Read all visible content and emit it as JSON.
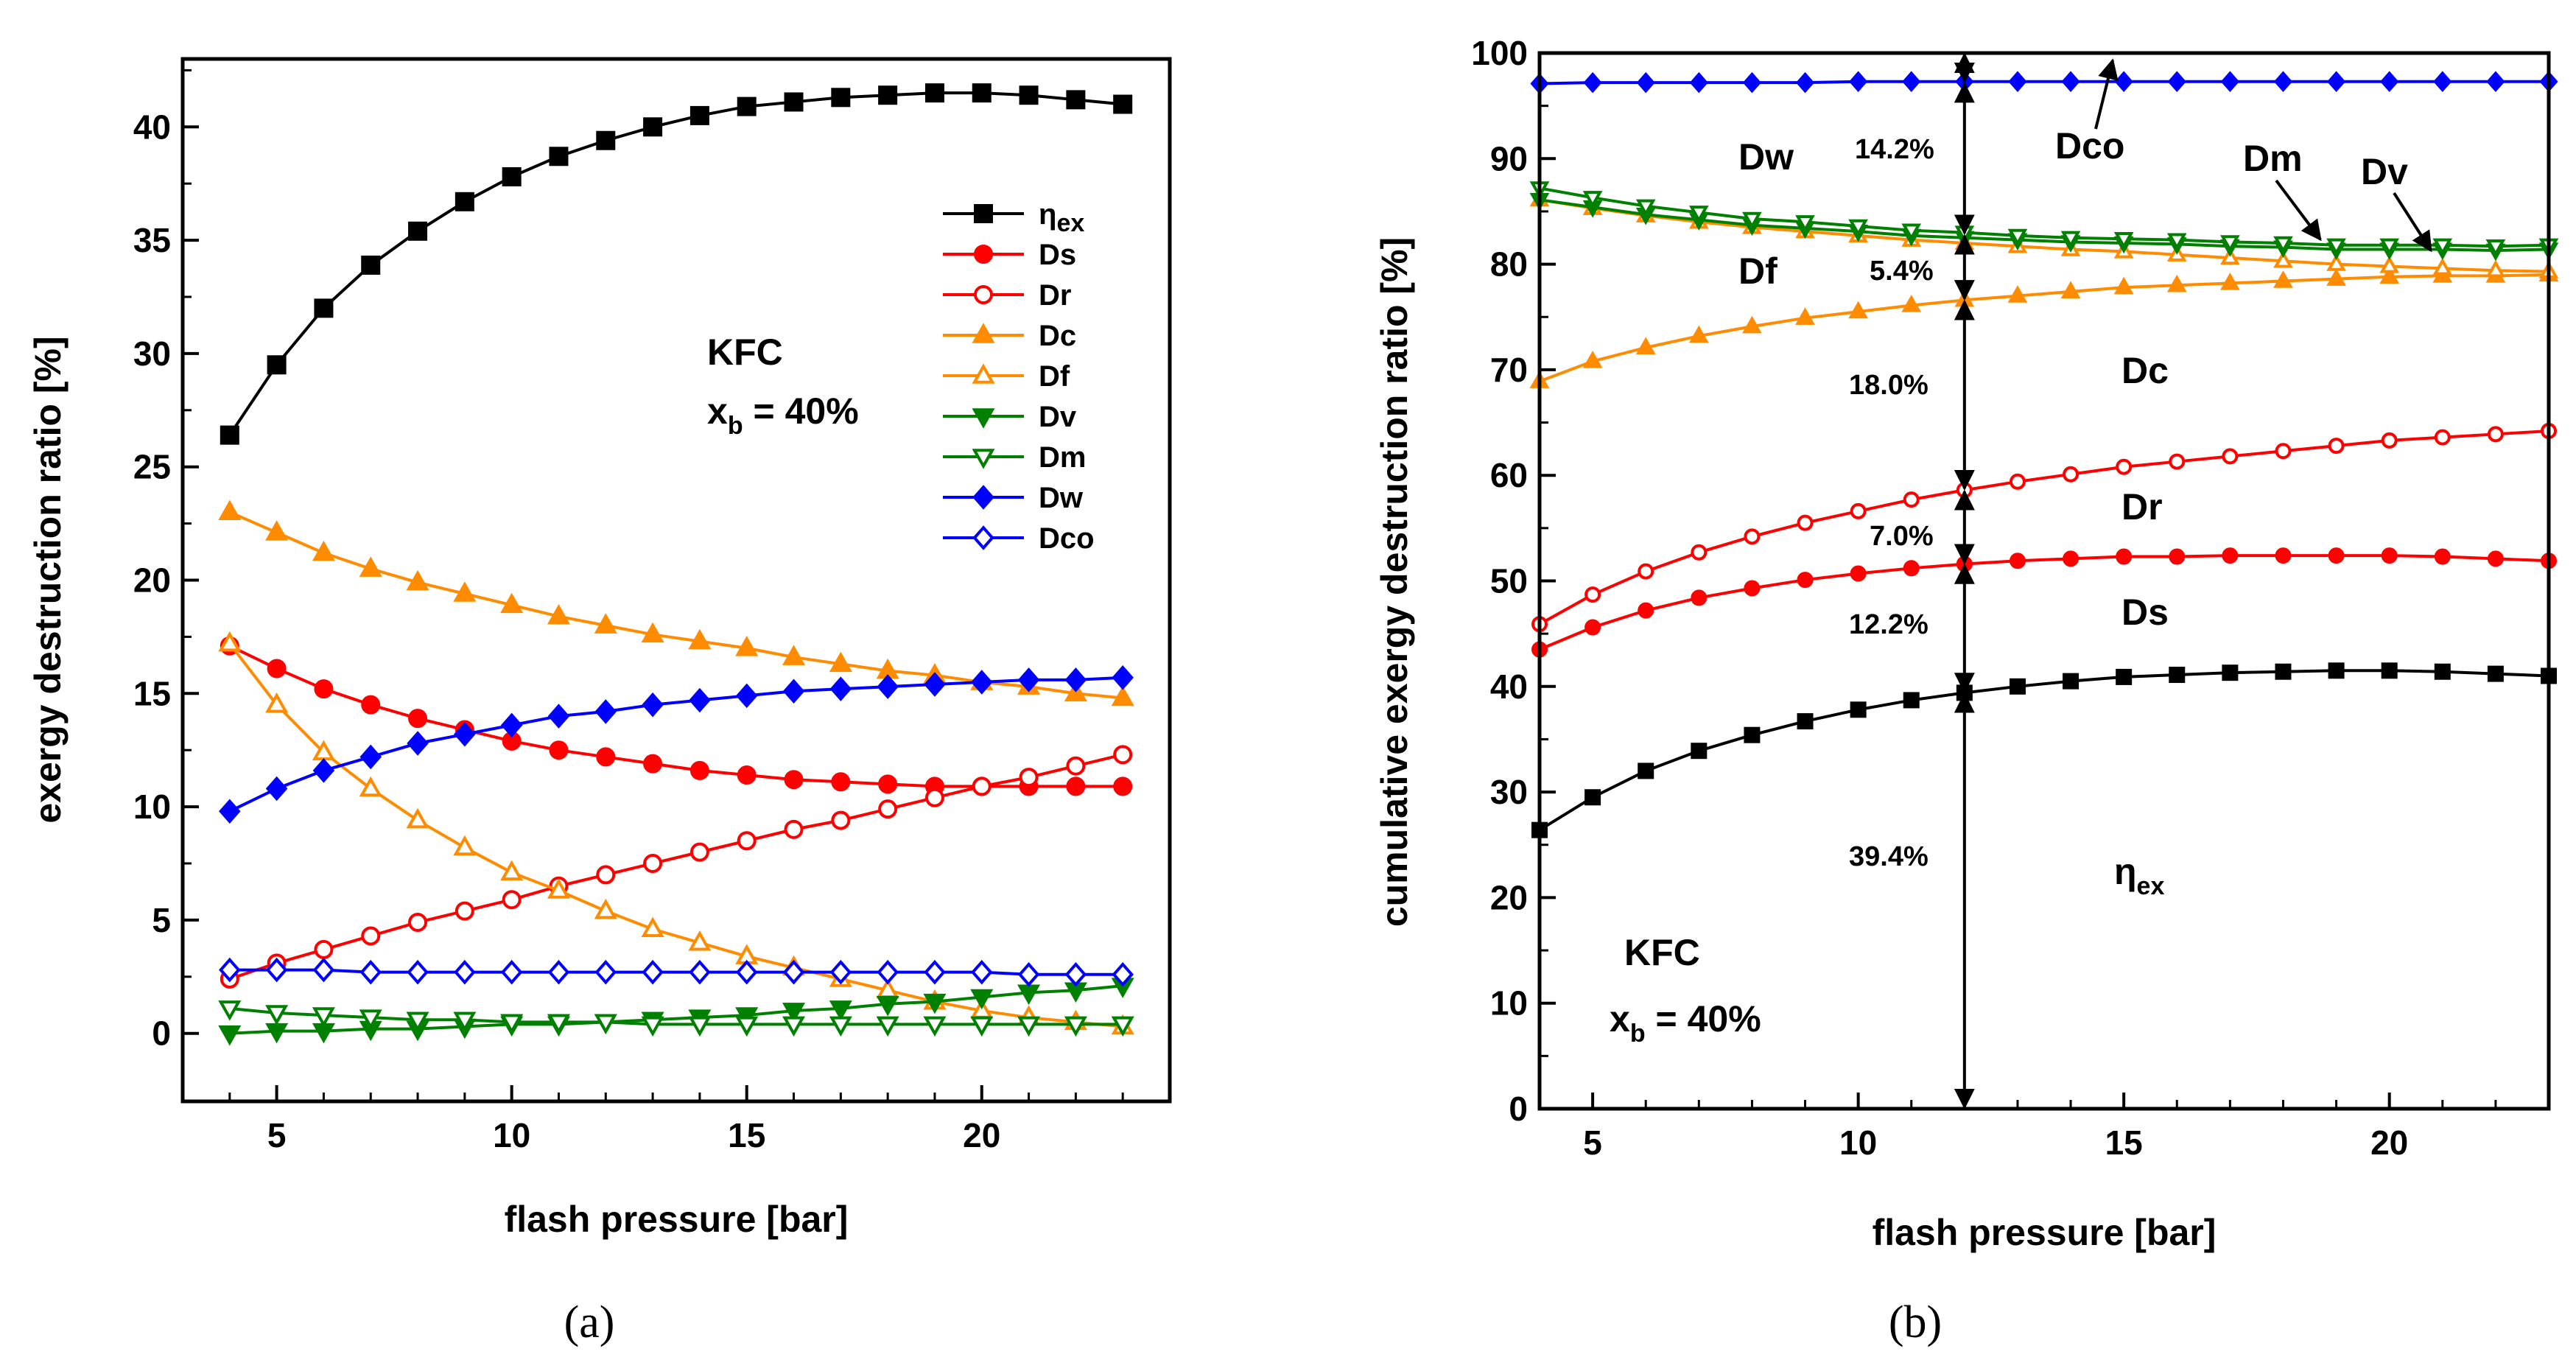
{
  "chart_data": [
    {
      "type": "line",
      "panel_label": "(a)",
      "xlabel": "flash pressure [bar]",
      "ylabel": "exergy destruction ratio [%]",
      "xlim": [
        3,
        24
      ],
      "ylim": [
        -3,
        43
      ],
      "xticks": [
        5,
        10,
        15,
        20
      ],
      "yticks": [
        0,
        5,
        10,
        15,
        20,
        25,
        30,
        35,
        40
      ],
      "x": [
        4,
        5,
        6,
        7,
        8,
        9,
        10,
        11,
        12,
        13,
        14,
        15,
        16,
        17,
        18,
        19,
        20,
        21,
        22,
        23
      ],
      "annotation": {
        "line1": "KFC",
        "line2_main": "x",
        "line2_sub": "b",
        "line2_rest": " = 40%"
      },
      "legend_position": "right-upper",
      "series": [
        {
          "name": "ηex",
          "name_main": "η",
          "name_sub": "ex",
          "color": "#000000",
          "marker": "square",
          "filled": true,
          "values": [
            26.4,
            29.5,
            32.0,
            33.9,
            35.4,
            36.7,
            37.8,
            38.7,
            39.4,
            40.0,
            40.5,
            40.9,
            41.1,
            41.3,
            41.4,
            41.5,
            41.5,
            41.4,
            41.2,
            41.0
          ]
        },
        {
          "name": "Ds",
          "color": "#ff0000",
          "marker": "circle",
          "filled": true,
          "values": [
            17.1,
            16.1,
            15.2,
            14.5,
            13.9,
            13.4,
            12.9,
            12.5,
            12.2,
            11.9,
            11.6,
            11.4,
            11.2,
            11.1,
            11.0,
            10.9,
            10.9,
            10.9,
            10.9,
            10.9
          ]
        },
        {
          "name": "Dr",
          "color": "#ff0000",
          "marker": "circle",
          "filled": false,
          "values": [
            2.4,
            3.1,
            3.7,
            4.3,
            4.9,
            5.4,
            5.9,
            6.5,
            7.0,
            7.5,
            8.0,
            8.5,
            9.0,
            9.4,
            9.9,
            10.4,
            10.9,
            11.3,
            11.8,
            12.3
          ]
        },
        {
          "name": "Dc",
          "color": "#ff8c00",
          "marker": "triangle-up",
          "filled": true,
          "values": [
            23.0,
            22.1,
            21.2,
            20.5,
            19.9,
            19.4,
            18.9,
            18.4,
            18.0,
            17.6,
            17.3,
            17.0,
            16.6,
            16.3,
            16.0,
            15.8,
            15.5,
            15.3,
            15.0,
            14.8
          ]
        },
        {
          "name": "Df",
          "color": "#ff8c00",
          "marker": "triangle-up",
          "filled": false,
          "values": [
            17.2,
            14.5,
            12.4,
            10.8,
            9.4,
            8.2,
            7.1,
            6.3,
            5.4,
            4.6,
            4.0,
            3.4,
            2.9,
            2.4,
            1.9,
            1.4,
            1.0,
            0.7,
            0.5,
            0.3
          ]
        },
        {
          "name": "Dv",
          "color": "#008000",
          "marker": "triangle-down",
          "filled": true,
          "values": [
            0.0,
            0.1,
            0.1,
            0.2,
            0.2,
            0.3,
            0.4,
            0.4,
            0.5,
            0.6,
            0.7,
            0.8,
            1.0,
            1.1,
            1.3,
            1.4,
            1.6,
            1.8,
            1.9,
            2.1
          ]
        },
        {
          "name": "Dm",
          "color": "#008000",
          "marker": "triangle-down",
          "filled": false,
          "values": [
            1.1,
            0.9,
            0.8,
            0.7,
            0.6,
            0.6,
            0.5,
            0.5,
            0.5,
            0.4,
            0.4,
            0.4,
            0.4,
            0.4,
            0.4,
            0.4,
            0.4,
            0.4,
            0.4,
            0.4
          ]
        },
        {
          "name": "Dw",
          "color": "#0000ff",
          "marker": "diamond",
          "filled": true,
          "values": [
            9.8,
            10.8,
            11.6,
            12.2,
            12.8,
            13.2,
            13.6,
            14.0,
            14.2,
            14.5,
            14.7,
            14.9,
            15.1,
            15.2,
            15.3,
            15.4,
            15.5,
            15.6,
            15.6,
            15.7
          ]
        },
        {
          "name": "Dco",
          "color": "#0000ff",
          "marker": "diamond",
          "filled": false,
          "values": [
            2.8,
            2.8,
            2.8,
            2.7,
            2.7,
            2.7,
            2.7,
            2.7,
            2.7,
            2.7,
            2.7,
            2.7,
            2.7,
            2.7,
            2.7,
            2.7,
            2.7,
            2.6,
            2.6,
            2.6
          ]
        }
      ]
    },
    {
      "type": "line",
      "panel_label": "(b)",
      "xlabel": "flash pressure [bar]",
      "ylabel": "cumulative exergy destruction ratio [%]",
      "xlim": [
        4,
        23
      ],
      "ylim": [
        0,
        100
      ],
      "xticks": [
        5,
        10,
        15,
        20
      ],
      "yticks": [
        0,
        10,
        20,
        30,
        40,
        50,
        60,
        70,
        80,
        90,
        100
      ],
      "x": [
        4,
        5,
        6,
        7,
        8,
        9,
        10,
        11,
        12,
        13,
        14,
        15,
        16,
        17,
        18,
        19,
        20,
        21,
        22,
        23
      ],
      "marker_line": {
        "x": 12,
        "values": [
          0,
          39.4,
          51.6,
          58.6,
          76.6,
          82.8,
          97.2,
          100
        ]
      },
      "segment_labels": [
        "39.4%",
        "12.2%",
        "7.0%",
        "18.0%",
        "5.4%",
        "14.2%"
      ],
      "region_labels": {
        "eta_main": "η",
        "eta_sub": "ex",
        "ds": "Ds",
        "dr": "Dr",
        "dc": "Dc",
        "df": "Df",
        "dw": "Dw",
        "dco": "Dco",
        "dm": "Dm",
        "dv": "Dv"
      },
      "annotation": {
        "line1": "KFC",
        "line2_main": "x",
        "line2_sub": "b",
        "line2_rest": " = 40%"
      },
      "series": [
        {
          "name": "ηex",
          "color": "#000000",
          "marker": "square",
          "filled": true,
          "values": [
            26.4,
            29.5,
            32.0,
            33.9,
            35.4,
            36.7,
            37.8,
            38.7,
            39.4,
            40.0,
            40.5,
            40.9,
            41.1,
            41.3,
            41.4,
            41.5,
            41.5,
            41.4,
            41.2,
            41.0
          ]
        },
        {
          "name": "+Ds",
          "color": "#ff0000",
          "marker": "circle",
          "filled": true,
          "values": [
            43.5,
            45.6,
            47.2,
            48.4,
            49.3,
            50.1,
            50.7,
            51.2,
            51.6,
            51.9,
            52.1,
            52.3,
            52.3,
            52.4,
            52.4,
            52.4,
            52.4,
            52.3,
            52.1,
            51.9
          ]
        },
        {
          "name": "+Dr",
          "color": "#ff0000",
          "marker": "circle",
          "filled": false,
          "values": [
            45.9,
            48.7,
            50.9,
            52.7,
            54.2,
            55.5,
            56.6,
            57.7,
            58.6,
            59.4,
            60.1,
            60.8,
            61.3,
            61.8,
            62.3,
            62.8,
            63.3,
            63.6,
            63.9,
            64.2
          ]
        },
        {
          "name": "+Dc",
          "color": "#ff8c00",
          "marker": "triangle-up",
          "filled": true,
          "values": [
            68.9,
            70.8,
            72.1,
            73.2,
            74.1,
            74.9,
            75.5,
            76.1,
            76.6,
            77.0,
            77.4,
            77.8,
            78.0,
            78.2,
            78.4,
            78.6,
            78.8,
            78.9,
            78.9,
            79.0
          ]
        },
        {
          "name": "+Df",
          "color": "#ff8c00",
          "marker": "triangle-up",
          "filled": false,
          "values": [
            86.1,
            85.3,
            84.6,
            84.0,
            83.5,
            83.1,
            82.7,
            82.3,
            82.0,
            81.7,
            81.4,
            81.2,
            80.9,
            80.6,
            80.3,
            80.0,
            79.8,
            79.6,
            79.4,
            79.3
          ]
        },
        {
          "name": "+Dv",
          "color": "#008000",
          "marker": "triangle-down",
          "filled": true,
          "values": [
            86.1,
            85.4,
            84.7,
            84.2,
            83.7,
            83.4,
            83.1,
            82.7,
            82.5,
            82.3,
            82.1,
            82.0,
            81.9,
            81.7,
            81.6,
            81.4,
            81.4,
            81.4,
            81.3,
            81.4
          ]
        },
        {
          "name": "+Dm",
          "color": "#008000",
          "marker": "triangle-down",
          "filled": false,
          "values": [
            87.2,
            86.3,
            85.5,
            84.9,
            84.3,
            84.0,
            83.6,
            83.2,
            83.0,
            82.7,
            82.5,
            82.4,
            82.3,
            82.1,
            82.0,
            81.8,
            81.8,
            81.8,
            81.7,
            81.8
          ]
        },
        {
          "name": "+Dw+Dco",
          "color": "#0000ff",
          "marker": "diamond",
          "filled": true,
          "values": [
            97.1,
            97.2,
            97.2,
            97.2,
            97.2,
            97.2,
            97.3,
            97.3,
            97.3,
            97.3,
            97.3,
            97.3,
            97.3,
            97.3,
            97.3,
            97.3,
            97.3,
            97.3,
            97.3,
            97.3
          ]
        }
      ]
    }
  ]
}
